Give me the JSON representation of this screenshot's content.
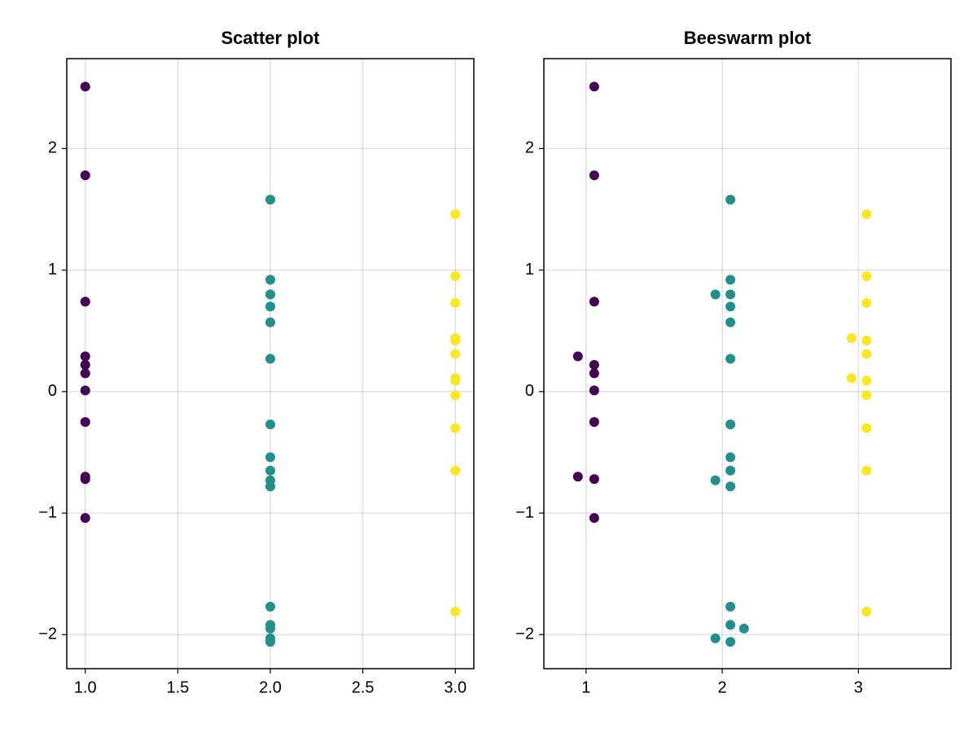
{
  "chart_data": [
    {
      "type": "scatter",
      "title": "Scatter plot",
      "xlim": [
        0.9,
        3.1
      ],
      "ylim": [
        -2.28,
        2.74
      ],
      "xticks": [
        {
          "value": 1,
          "label": "1.0"
        },
        1.5,
        {
          "value": 2,
          "label": "2.0"
        },
        2.5,
        {
          "value": 3,
          "label": "3.0"
        }
      ],
      "yticks": [
        {
          "value": -2,
          "label": "−2"
        },
        {
          "value": -1,
          "label": "−1"
        },
        0,
        1,
        2
      ],
      "grid": true,
      "series": [
        {
          "color": "#440154",
          "x": [
            1,
            1,
            1,
            1,
            1,
            1,
            1,
            1,
            1,
            1,
            1
          ],
          "values": [
            2.51,
            1.78,
            0.74,
            0.29,
            0.22,
            0.15,
            0.01,
            -0.25,
            -0.7,
            -0.72,
            -1.04
          ]
        },
        {
          "color": "#21908d",
          "x": [
            2,
            2,
            2,
            2,
            2,
            2,
            2,
            2,
            2,
            2,
            2,
            2,
            2,
            2,
            2,
            2,
            2
          ],
          "values": [
            1.58,
            0.92,
            0.8,
            0.8,
            0.7,
            0.57,
            0.27,
            -0.27,
            -0.54,
            -0.65,
            -0.73,
            -0.78,
            -1.77,
            -1.92,
            -1.95,
            -2.03,
            -2.06
          ]
        },
        {
          "color": "#fde725",
          "x": [
            3,
            3,
            3,
            3,
            3,
            3,
            3,
            3,
            3,
            3,
            3,
            3
          ],
          "values": [
            1.46,
            0.95,
            0.73,
            0.44,
            0.42,
            0.31,
            0.11,
            0.09,
            -0.03,
            -0.3,
            -0.65,
            -1.81
          ]
        }
      ]
    },
    {
      "type": "scatter",
      "title": "Beeswarm plot",
      "xlim": [
        0.69,
        3.68
      ],
      "ylim": [
        -2.28,
        2.74
      ],
      "xticks": [
        1,
        2,
        3
      ],
      "yticks": [
        {
          "value": -2,
          "label": "−2"
        },
        {
          "value": -1,
          "label": "−1"
        },
        0,
        1,
        2
      ],
      "grid": true,
      "series": [
        {
          "color": "#440154",
          "x": [
            1.06,
            1.06,
            1.06,
            0.94,
            1.06,
            1.06,
            1.06,
            1.06,
            0.94,
            1.06,
            1.06
          ],
          "values": [
            2.51,
            1.78,
            0.74,
            0.29,
            0.22,
            0.15,
            0.01,
            -0.25,
            -0.7,
            -0.72,
            -1.04
          ]
        },
        {
          "color": "#21908d",
          "x": [
            2.06,
            2.06,
            1.95,
            2.06,
            2.06,
            2.06,
            2.06,
            2.06,
            2.06,
            2.06,
            1.95,
            2.06,
            2.06,
            2.06,
            2.16,
            1.95,
            2.06
          ],
          "values": [
            1.58,
            0.92,
            0.8,
            0.8,
            0.7,
            0.57,
            0.27,
            -0.27,
            -0.54,
            -0.65,
            -0.73,
            -0.78,
            -1.77,
            -1.92,
            -1.95,
            -2.03,
            -2.06
          ]
        },
        {
          "color": "#fde725",
          "x": [
            3.06,
            3.06,
            3.06,
            2.95,
            3.06,
            3.06,
            2.95,
            3.06,
            3.06,
            3.06,
            3.06,
            3.06
          ],
          "values": [
            1.46,
            0.95,
            0.73,
            0.44,
            0.42,
            0.31,
            0.11,
            0.09,
            -0.03,
            -0.3,
            -0.65,
            -1.81
          ]
        }
      ]
    }
  ]
}
